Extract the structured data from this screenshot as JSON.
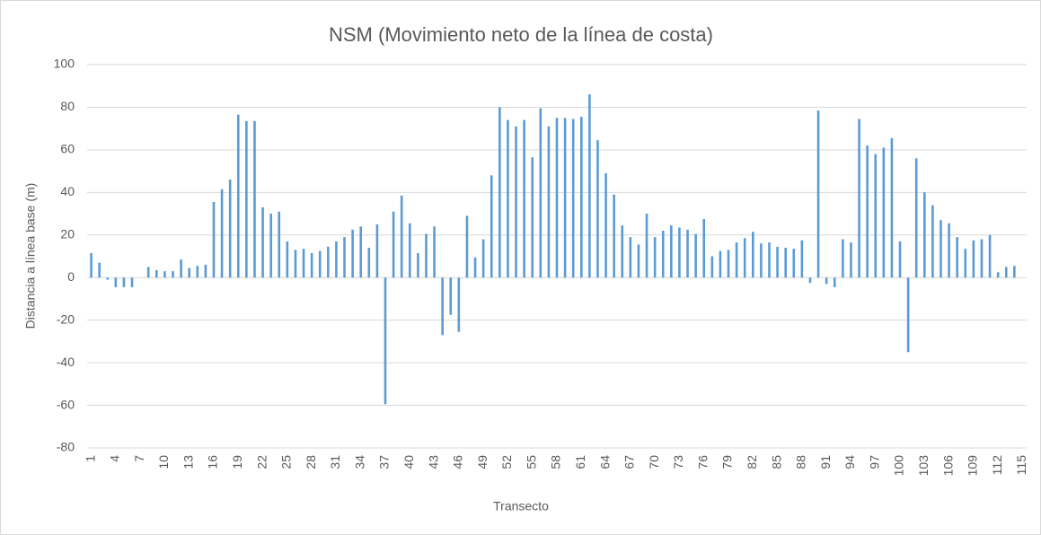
{
  "chart_data": {
    "type": "bar",
    "title": "NSM (Movimiento neto de la línea de costa)",
    "x_label": "Transecto",
    "y_label": "Distancia a línea base (m)",
    "categories": [
      "1",
      null,
      null,
      "4",
      null,
      null,
      "7",
      null,
      null,
      "10",
      null,
      null,
      "13",
      null,
      null,
      "16",
      null,
      null,
      "19",
      null,
      null,
      "22",
      null,
      null,
      "25",
      null,
      null,
      "28",
      null,
      null,
      "31",
      null,
      null,
      "34",
      null,
      null,
      "37",
      null,
      null,
      "40",
      null,
      null,
      "43",
      null,
      null,
      "46",
      null,
      null,
      "49",
      null,
      null,
      "52",
      null,
      null,
      "55",
      null,
      null,
      "58",
      null,
      null,
      "61",
      null,
      null,
      "64",
      null,
      null,
      "67",
      null,
      null,
      "70",
      null,
      null,
      "73",
      null,
      null,
      "76",
      null,
      null,
      "79",
      null,
      null,
      "82",
      null,
      null,
      "85",
      null,
      null,
      "88",
      null,
      null,
      "91",
      null,
      null,
      "94",
      null,
      null,
      "97",
      null,
      null,
      "100",
      null,
      null,
      "103",
      null,
      null,
      "106",
      null,
      null,
      "109",
      null,
      null,
      "112",
      null,
      null,
      "115"
    ],
    "values": [
      11.5,
      7,
      -1,
      -4.5,
      -4.5,
      -4.5,
      0,
      5,
      3.5,
      3,
      3,
      8.5,
      4.5,
      5.5,
      6,
      35.5,
      41.5,
      46,
      76.5,
      73.5,
      73.5,
      33,
      30,
      31,
      17,
      13,
      13.5,
      11.5,
      12.5,
      14.5,
      17,
      19,
      22.5,
      24,
      14,
      25,
      -59.5,
      31,
      38.5,
      25.5,
      11.5,
      20.5,
      24,
      -27,
      -17.5,
      -25.5,
      29,
      9.5,
      18,
      48,
      80,
      74,
      71,
      74,
      56.5,
      79.5,
      71,
      75,
      75,
      74.5,
      75.5,
      86,
      64.5,
      49,
      39,
      24.5,
      19,
      15.5,
      30,
      19,
      22,
      24.5,
      23.5,
      22.5,
      20.5,
      27.5,
      10,
      12.5,
      13,
      16.5,
      18.5,
      21.5,
      16,
      16.5,
      14.5,
      14,
      13.5,
      17.5,
      -2.5,
      78.5,
      -3,
      -4.5,
      18,
      16.5,
      74.5,
      62,
      58,
      61,
      65.5,
      17,
      -35,
      56,
      40,
      34,
      27,
      25.5,
      19,
      13.5,
      17.5,
      18,
      20,
      2.5,
      5,
      5.5,
      0
    ],
    "color": "#5b9bd5",
    "ylim": [
      -80,
      100
    ],
    "yticks": [
      -80,
      -60,
      -40,
      -20,
      0,
      20,
      40,
      60,
      80,
      100
    ],
    "grid": true
  }
}
